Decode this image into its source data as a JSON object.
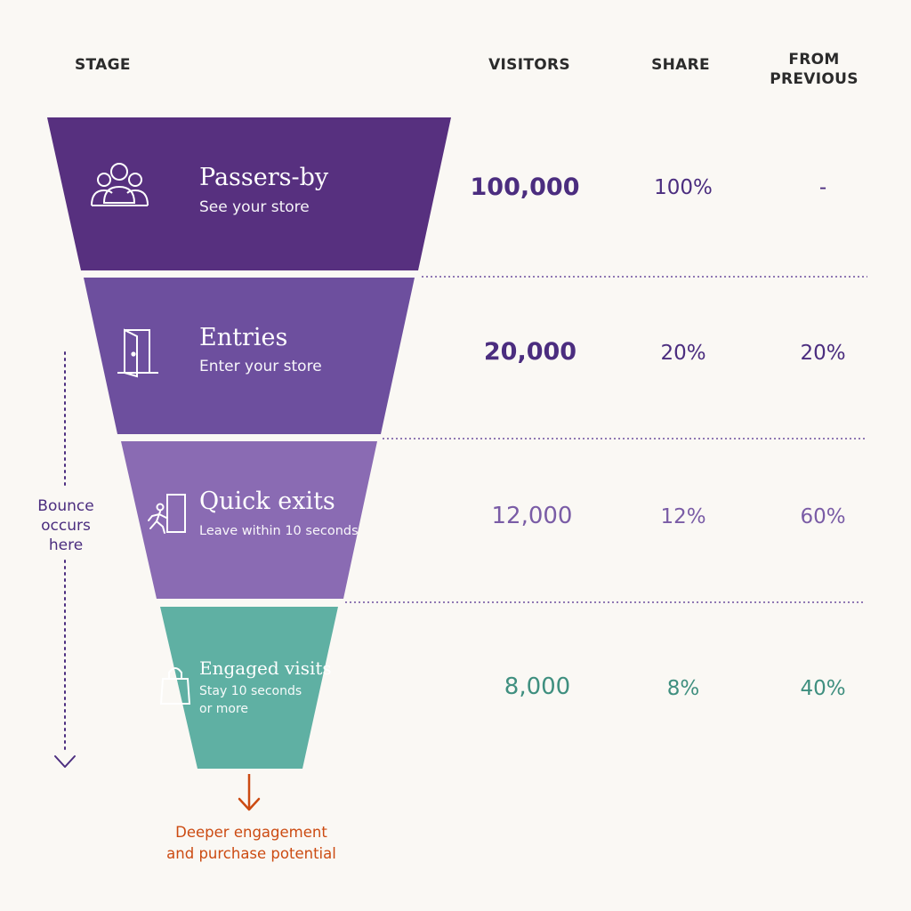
{
  "headers": {
    "stage": "STAGE",
    "visitors": "VISITORS",
    "share": "SHARE",
    "from_previous_line1": "FROM",
    "from_previous_line2": "PREVIOUS"
  },
  "stages": [
    {
      "name": "Passers-by",
      "subtitle": "See your store",
      "visitors": "100,000",
      "share": "100%",
      "from_previous": "-",
      "icon": "people-group-icon",
      "color": "#57307f",
      "text_color": "#4b2d7f"
    },
    {
      "name": "Entries",
      "subtitle": "Enter your store",
      "visitors": "20,000",
      "share": "20%",
      "from_previous": "20%",
      "icon": "open-door-icon",
      "color": "#6d4f9e",
      "text_color": "#4b2d7f"
    },
    {
      "name": "Quick exits",
      "subtitle": "Leave within 10 seconds",
      "visitors": "12,000",
      "share": "12%",
      "from_previous": "60%",
      "icon": "running-exit-icon",
      "color": "#8a6bb3",
      "text_color": "#7a5ca6"
    },
    {
      "name": "Engaged visits",
      "subtitle_line1": "Stay 10 seconds",
      "subtitle_line2": "or more",
      "visitors": "8,000",
      "share": "8%",
      "from_previous": "40%",
      "icon": "shopping-bag-icon",
      "color": "#5fb0a3",
      "text_color": "#3f8f7f"
    }
  ],
  "annotations": {
    "bounce_line1": "Bounce",
    "bounce_line2": "occurs",
    "bounce_line3": "here",
    "deeper_line1": "Deeper engagement",
    "deeper_line2": "and purchase potential",
    "bounce_color": "#4b2d7f",
    "deeper_color": "#cc4b12"
  },
  "chart_data": {
    "type": "funnel",
    "categories": [
      "Passers-by",
      "Entries",
      "Quick exits",
      "Engaged visits"
    ],
    "series": [
      {
        "name": "VISITORS",
        "values": [
          100000,
          20000,
          12000,
          8000
        ]
      },
      {
        "name": "SHARE",
        "values": [
          100,
          20,
          12,
          8
        ]
      },
      {
        "name": "FROM PREVIOUS",
        "values": [
          null,
          20,
          60,
          40
        ]
      }
    ]
  }
}
